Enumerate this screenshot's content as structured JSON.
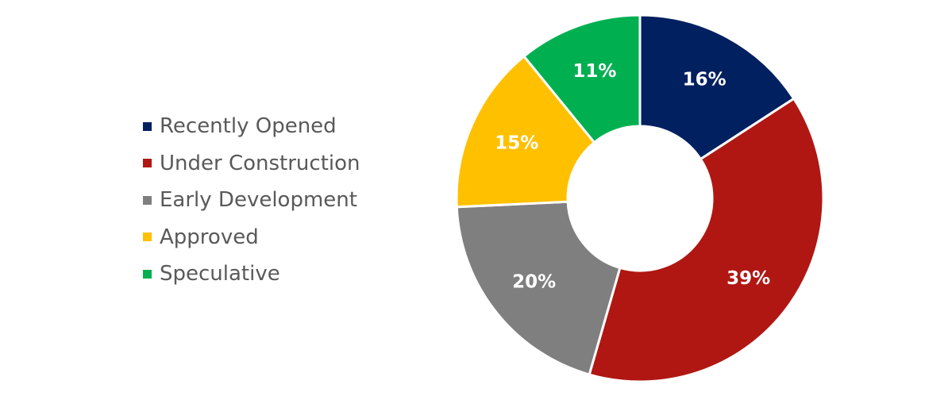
{
  "chart_data": {
    "type": "pie",
    "variant": "donut",
    "title": "",
    "legend_position": "left",
    "slices": [
      {
        "name": "Recently Opened",
        "value": 16,
        "label": "16%",
        "color": "#002060"
      },
      {
        "name": "Under Construction",
        "value": 39,
        "label": "39%",
        "color": "#b01713"
      },
      {
        "name": "Early Development",
        "value": 20,
        "label": "20%",
        "color": "#7f7f7f"
      },
      {
        "name": "Approved",
        "value": 15,
        "label": "15%",
        "color": "#ffc000"
      },
      {
        "name": "Speculative",
        "value": 11,
        "label": "11%",
        "color": "#00b050"
      }
    ]
  }
}
